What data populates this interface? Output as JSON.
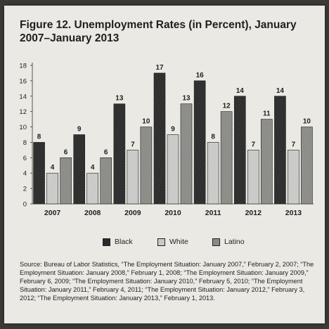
{
  "title": "Figure 12. Unemployment Rates (in Percent), January 2007–January 2013",
  "chart_data": {
    "type": "bar",
    "title": "Figure 12. Unemployment Rates (in Percent), January 2007–January 2013",
    "xlabel": "",
    "ylabel": "",
    "categories": [
      "2007",
      "2008",
      "2009",
      "2010",
      "2011",
      "2012",
      "2013"
    ],
    "series": [
      {
        "name": "Black",
        "values": [
          8,
          9,
          13,
          17,
          16,
          14,
          14
        ],
        "color": "#2a2a2a"
      },
      {
        "name": "White",
        "values": [
          4,
          4,
          7,
          9,
          8,
          7,
          7
        ],
        "color": "#c9c9c7"
      },
      {
        "name": "Latino",
        "values": [
          6,
          6,
          10,
          13,
          12,
          11,
          10
        ],
        "color": "#8a8a87"
      }
    ],
    "ylim": [
      0,
      18
    ],
    "yticks": [
      "0",
      "2",
      "4",
      "6",
      "8",
      "10",
      "12",
      "14",
      "16",
      "18"
    ],
    "grid": false,
    "legend": "bottom"
  },
  "legend": {
    "items": [
      {
        "label": "Black",
        "color": "#2a2a2a"
      },
      {
        "label": "White",
        "color": "#c9c9c7"
      },
      {
        "label": "Latino",
        "color": "#8a8a87"
      }
    ]
  },
  "source": "Source: Bureau of Labor Statistics, “The Employment Situation: January 2007,” February 2, 2007; “The Employment Situation: January 2008,” February 1, 2008; “The Employment Situation: January 2009,” February 6, 2009; “The Employment Situation: January 2010,” February 5, 2010; “The Employment Situation: January 2011,” February 4, 2011; “The Employment Situation: January 2012,” February 3, 2012; “The Employment Situation: January 2013,” February 1, 2013."
}
